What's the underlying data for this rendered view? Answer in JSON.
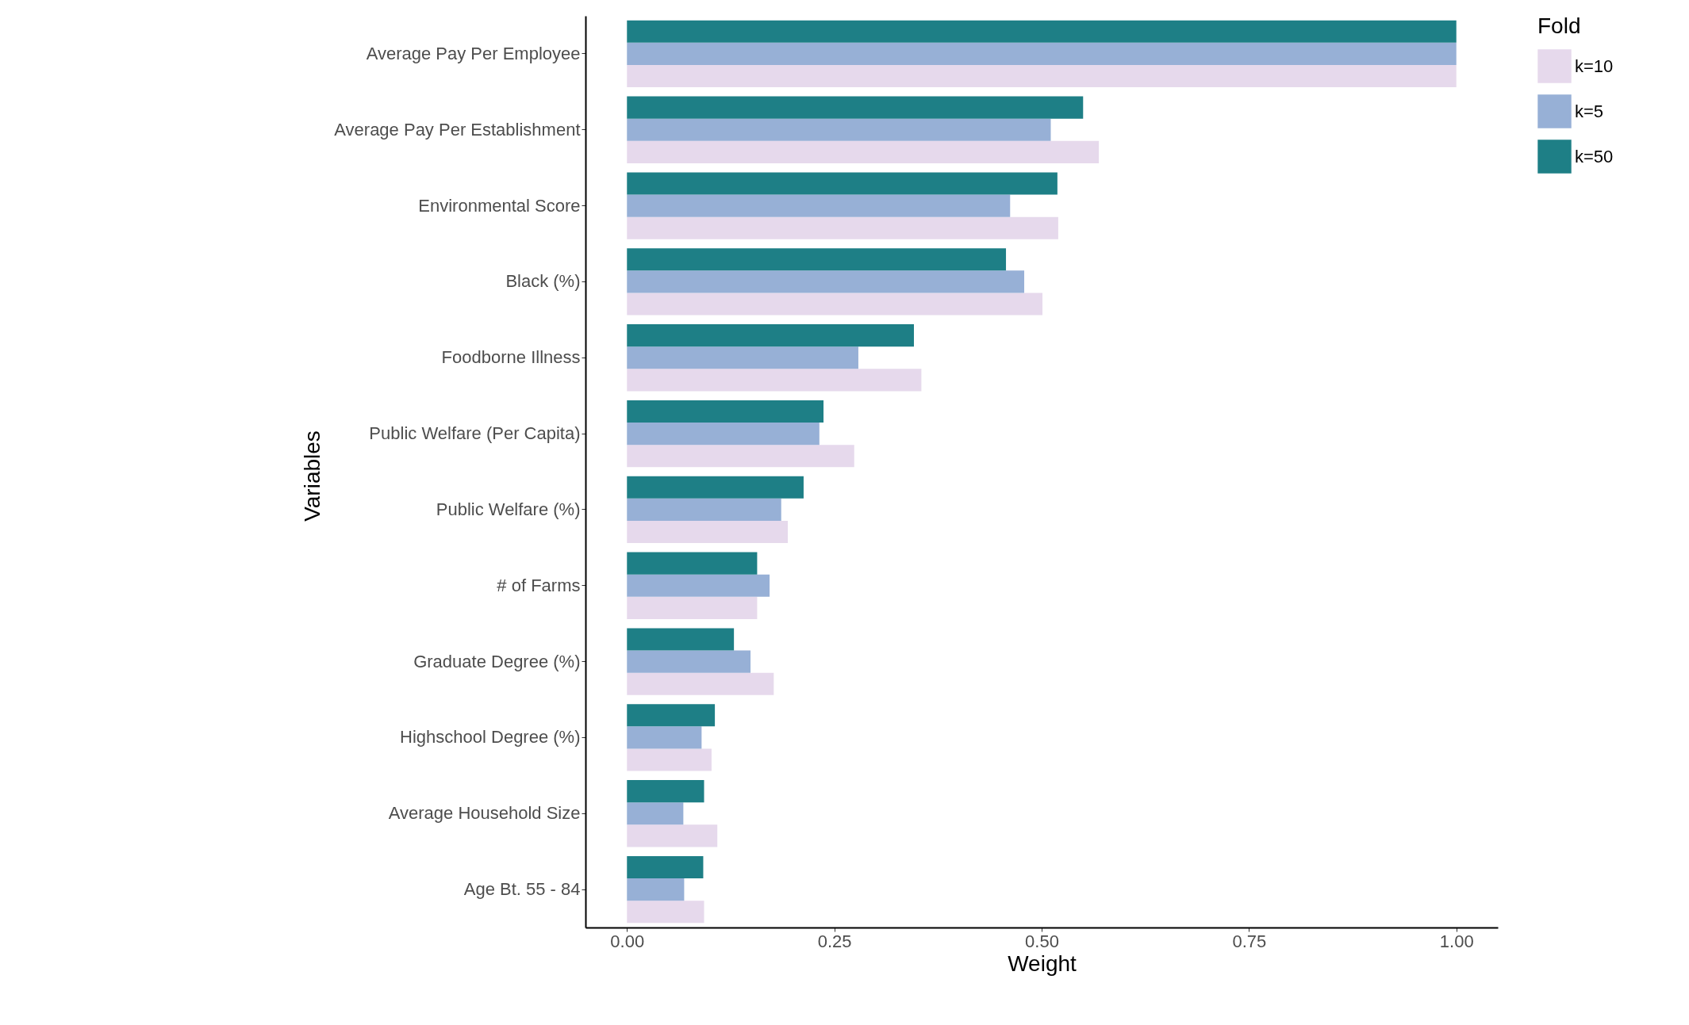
{
  "chart_data": {
    "type": "bar",
    "orientation": "horizontal",
    "xlabel": "Weight",
    "ylabel": "Variables",
    "legend_title": "Fold",
    "legend": "right",
    "grid": false,
    "categories": [
      "Average Pay Per Employee",
      "Average Pay Per Establishment",
      "Environmental Score",
      "Black (%)",
      "Foodborne Illness",
      "Public Welfare (Per Capita)",
      "Public Welfare (%)",
      "# of Farms",
      "Graduate Degree (%)",
      "Highschool Degree (%)",
      "Average Household Size",
      "Age Bt. 55 - 84"
    ],
    "series": [
      {
        "name": "k=10",
        "color": "#e6d9ec",
        "values": [
          1.0,
          0.569,
          0.52,
          0.501,
          0.355,
          0.274,
          0.194,
          0.157,
          0.177,
          0.102,
          0.109,
          0.093
        ]
      },
      {
        "name": "k=5",
        "color": "#97b0d6",
        "values": [
          1.0,
          0.511,
          0.462,
          0.479,
          0.279,
          0.232,
          0.186,
          0.172,
          0.149,
          0.09,
          0.068,
          0.069
        ]
      },
      {
        "name": "k=50",
        "color": "#1e7f86",
        "values": [
          1.0,
          0.55,
          0.519,
          0.457,
          0.346,
          0.237,
          0.213,
          0.157,
          0.129,
          0.106,
          0.093,
          0.092
        ]
      }
    ],
    "xlim": [
      -0.05,
      1.05
    ],
    "xticks": [
      {
        "value": 0,
        "label": "0.00"
      },
      {
        "value": 0.25,
        "label": "0.25"
      },
      {
        "value": 0.5,
        "label": "0.50"
      },
      {
        "value": 0.75,
        "label": "0.75"
      },
      {
        "value": 1,
        "label": "1.00"
      }
    ]
  }
}
